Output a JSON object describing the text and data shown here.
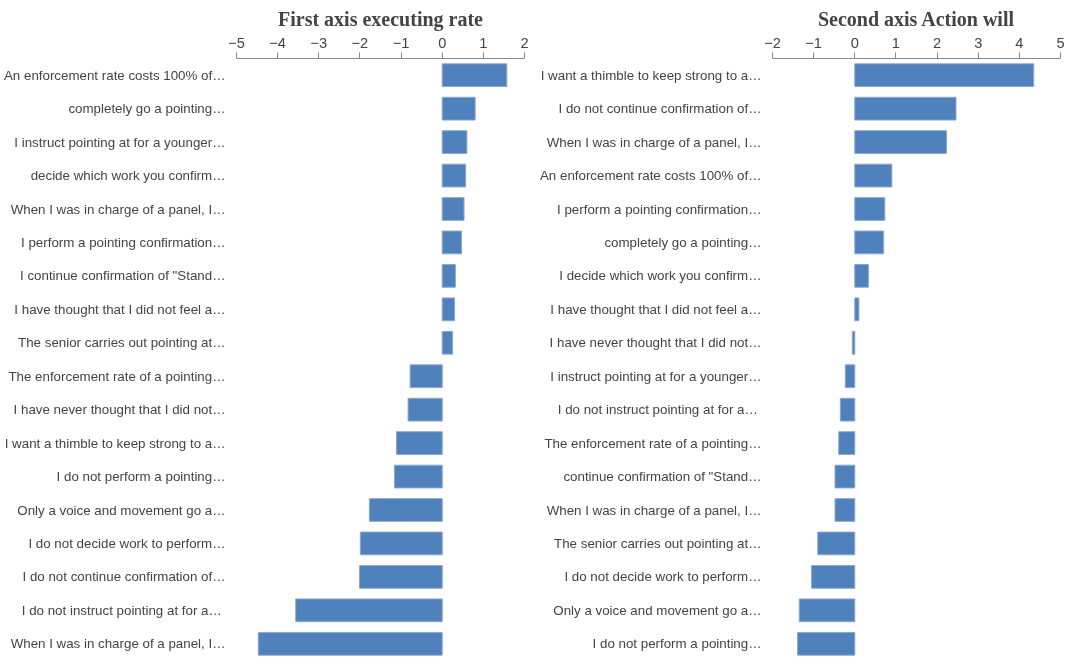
{
  "chart_data": [
    {
      "type": "bar",
      "orientation": "horizontal",
      "title": "First axis executing rate",
      "color": "#4f81bd",
      "grid": false,
      "xlim": [
        -5,
        2
      ],
      "xticks": [
        -5,
        -4,
        -3,
        -2,
        -1,
        0,
        1,
        2
      ],
      "categories": [
        "An enforcement rate costs 100% of…",
        "completely go a pointing…",
        "I instruct pointing at for a younger…",
        "decide which work you confirm…",
        "When I was in charge of a panel, I…",
        "I perform a pointing confirmation…",
        "I continue confirmation of \"Stand…",
        "I have thought that I did not feel a…",
        "The senior carries out pointing at…",
        "The enforcement rate of a pointing…",
        "I have never thought that I did not…",
        "I want a thimble to keep strong to a…",
        "I do not perform a pointing…",
        "Only a voice and movement go a…",
        "I do not decide work to perform…",
        "I do not continue confirmation of…",
        "I do not  instruct pointing at for a…",
        "When I was in charge of a panel, I…"
      ],
      "values": [
        1.57,
        0.8,
        0.6,
        0.57,
        0.53,
        0.47,
        0.32,
        0.3,
        0.25,
        -0.78,
        -0.83,
        -1.11,
        -1.16,
        -1.77,
        -1.99,
        -2.01,
        -3.56,
        -4.47
      ]
    },
    {
      "type": "bar",
      "orientation": "horizontal",
      "title": "Second axis Action will",
      "color": "#4f81bd",
      "grid": false,
      "xlim": [
        -2,
        5
      ],
      "xticks": [
        -2,
        -1,
        0,
        1,
        2,
        3,
        4,
        5
      ],
      "categories": [
        "I want a thimble to keep strong to a…",
        "I do not continue confirmation of…",
        "When I was in charge of a panel, I…",
        "An enforcement rate costs 100% of…",
        "I perform a pointing confirmation…",
        "completely go a pointing…",
        "I decide which work you confirm…",
        "I have thought that I did not feel a…",
        "I have never thought that I did not…",
        "I instruct pointing at for a younger…",
        "I do not  instruct pointing at for a…",
        "The enforcement rate of a pointing…",
        "continue confirmation of \"Stand…",
        "When I was in charge of a panel, I…",
        "The senior carries out pointing at…",
        "I do not decide work to perform…",
        "Only a voice and movement go a…",
        "I do not perform a pointing…"
      ],
      "values": [
        4.35,
        2.46,
        2.23,
        0.9,
        0.73,
        0.7,
        0.33,
        0.1,
        -0.06,
        -0.23,
        -0.35,
        -0.39,
        -0.48,
        -0.48,
        -0.9,
        -1.05,
        -1.35,
        -1.39
      ]
    }
  ]
}
